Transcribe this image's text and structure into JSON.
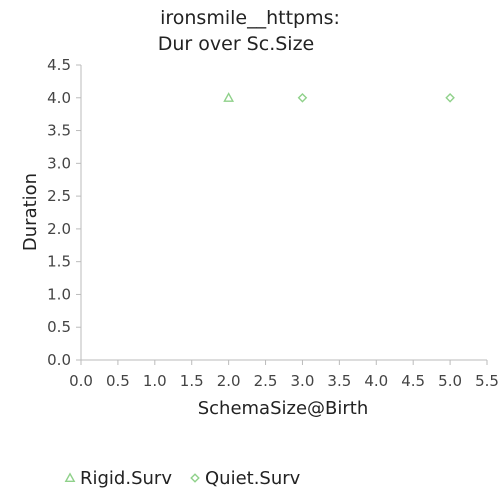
{
  "chart_data": {
    "type": "scatter",
    "title_lines": [
      "ironsmile__httpms:",
      "Dur over Sc.Size"
    ],
    "xlabel": "SchemaSize@Birth",
    "ylabel": "Duration",
    "xlim": [
      0,
      5.5
    ],
    "ylim": [
      0,
      4.5
    ],
    "x_ticks": [
      "0.0",
      "0.5",
      "1.0",
      "1.5",
      "2.0",
      "2.5",
      "3.0",
      "3.5",
      "4.0",
      "4.5",
      "5.0",
      "5.5"
    ],
    "y_ticks": [
      "0.0",
      "0.5",
      "1.0",
      "1.5",
      "2.0",
      "2.5",
      "3.0",
      "3.5",
      "4.0",
      "4.5"
    ],
    "grid": false,
    "legend_position": "bottom-left",
    "series": [
      {
        "name": "Rigid.Surv",
        "marker": "triangle",
        "color": "#8fd18a",
        "points": [
          {
            "x": 2.0,
            "y": 4.0
          }
        ]
      },
      {
        "name": "Quiet.Surv",
        "marker": "diamond",
        "color": "#8fd18a",
        "points": [
          {
            "x": 3.0,
            "y": 4.0
          },
          {
            "x": 5.0,
            "y": 4.0
          }
        ]
      }
    ]
  }
}
